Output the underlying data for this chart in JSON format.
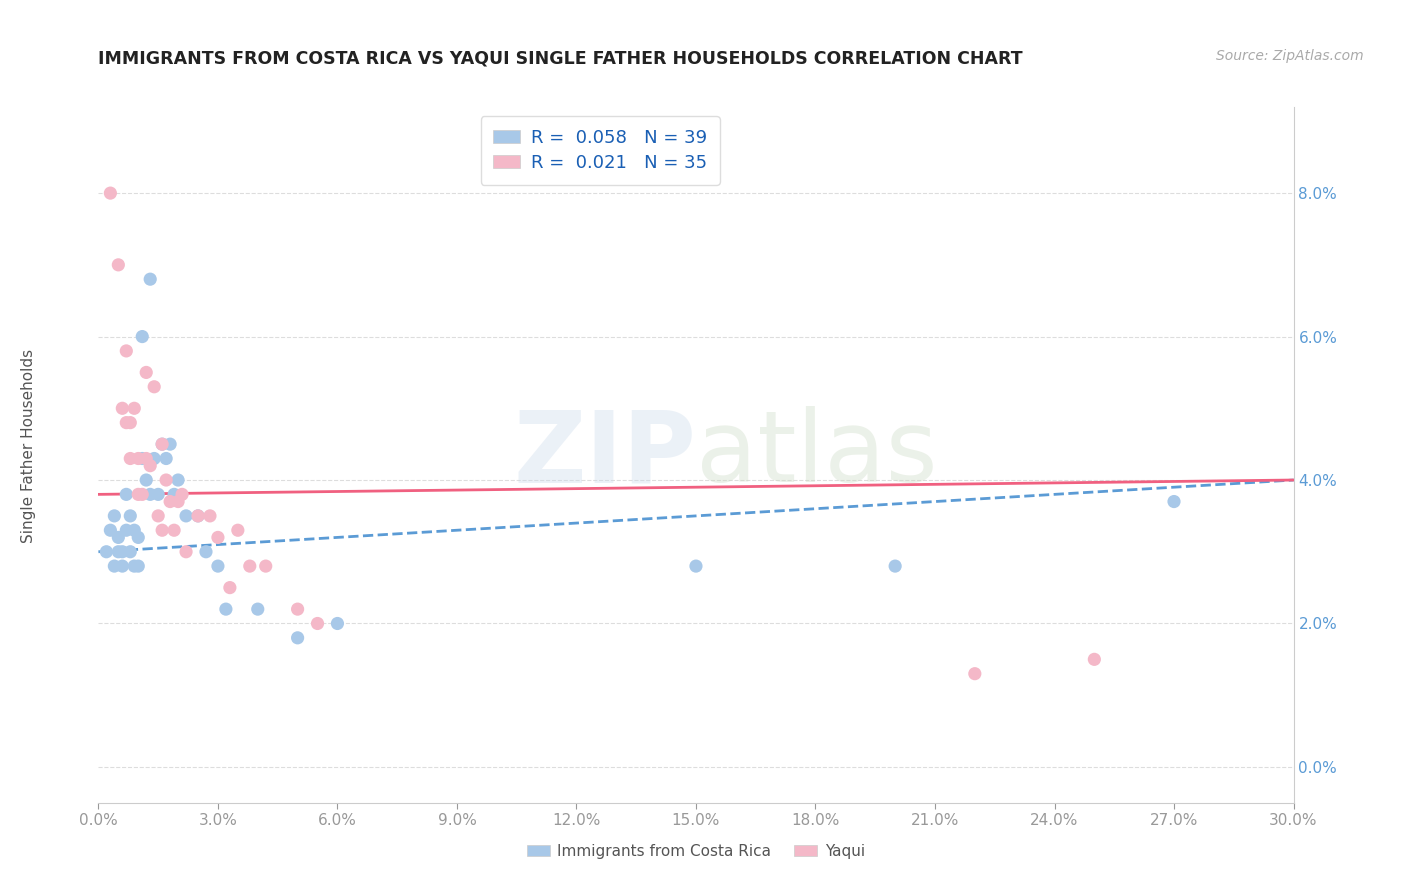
{
  "title": "IMMIGRANTS FROM COSTA RICA VS YAQUI SINGLE FATHER HOUSEHOLDS CORRELATION CHART",
  "source": "Source: ZipAtlas.com",
  "ylabel": "Single Father Households",
  "xlim": [
    0.0,
    0.3
  ],
  "ylim": [
    -0.005,
    0.092
  ],
  "xticks": [
    0.0,
    0.03,
    0.06,
    0.09,
    0.12,
    0.15,
    0.18,
    0.21,
    0.24,
    0.27,
    0.3
  ],
  "yticks": [
    0.0,
    0.02,
    0.04,
    0.06,
    0.08
  ],
  "blue_r": 0.058,
  "blue_n": 39,
  "pink_r": 0.021,
  "pink_n": 35,
  "blue_color": "#a8c8e8",
  "pink_color": "#f4b8c8",
  "blue_line_color": "#5b9bd5",
  "pink_line_color": "#f06080",
  "tick_label_color": "#5b9bd5",
  "legend_label_blue": "Immigrants from Costa Rica",
  "legend_label_pink": "Yaqui",
  "blue_scatter_x": [
    0.002,
    0.003,
    0.004,
    0.004,
    0.005,
    0.005,
    0.006,
    0.006,
    0.007,
    0.007,
    0.008,
    0.008,
    0.009,
    0.009,
    0.01,
    0.01,
    0.011,
    0.011,
    0.012,
    0.013,
    0.013,
    0.014,
    0.015,
    0.016,
    0.017,
    0.018,
    0.019,
    0.02,
    0.022,
    0.025,
    0.027,
    0.03,
    0.032,
    0.04,
    0.05,
    0.06,
    0.15,
    0.2,
    0.27
  ],
  "blue_scatter_y": [
    0.03,
    0.033,
    0.028,
    0.035,
    0.032,
    0.03,
    0.03,
    0.028,
    0.038,
    0.033,
    0.03,
    0.035,
    0.033,
    0.028,
    0.028,
    0.032,
    0.043,
    0.06,
    0.04,
    0.038,
    0.068,
    0.043,
    0.038,
    0.045,
    0.043,
    0.045,
    0.038,
    0.04,
    0.035,
    0.035,
    0.03,
    0.028,
    0.022,
    0.022,
    0.018,
    0.02,
    0.028,
    0.028,
    0.037
  ],
  "pink_scatter_x": [
    0.003,
    0.005,
    0.006,
    0.007,
    0.007,
    0.008,
    0.008,
    0.009,
    0.01,
    0.01,
    0.011,
    0.012,
    0.012,
    0.013,
    0.014,
    0.015,
    0.016,
    0.016,
    0.017,
    0.018,
    0.019,
    0.02,
    0.021,
    0.022,
    0.025,
    0.028,
    0.03,
    0.033,
    0.035,
    0.038,
    0.042,
    0.05,
    0.055,
    0.22,
    0.25
  ],
  "pink_scatter_y": [
    0.08,
    0.07,
    0.05,
    0.058,
    0.048,
    0.048,
    0.043,
    0.05,
    0.043,
    0.038,
    0.038,
    0.055,
    0.043,
    0.042,
    0.053,
    0.035,
    0.045,
    0.033,
    0.04,
    0.037,
    0.033,
    0.037,
    0.038,
    0.03,
    0.035,
    0.035,
    0.032,
    0.025,
    0.033,
    0.028,
    0.028,
    0.022,
    0.02,
    0.013,
    0.015
  ],
  "background_color": "#ffffff",
  "grid_color": "#dddddd"
}
